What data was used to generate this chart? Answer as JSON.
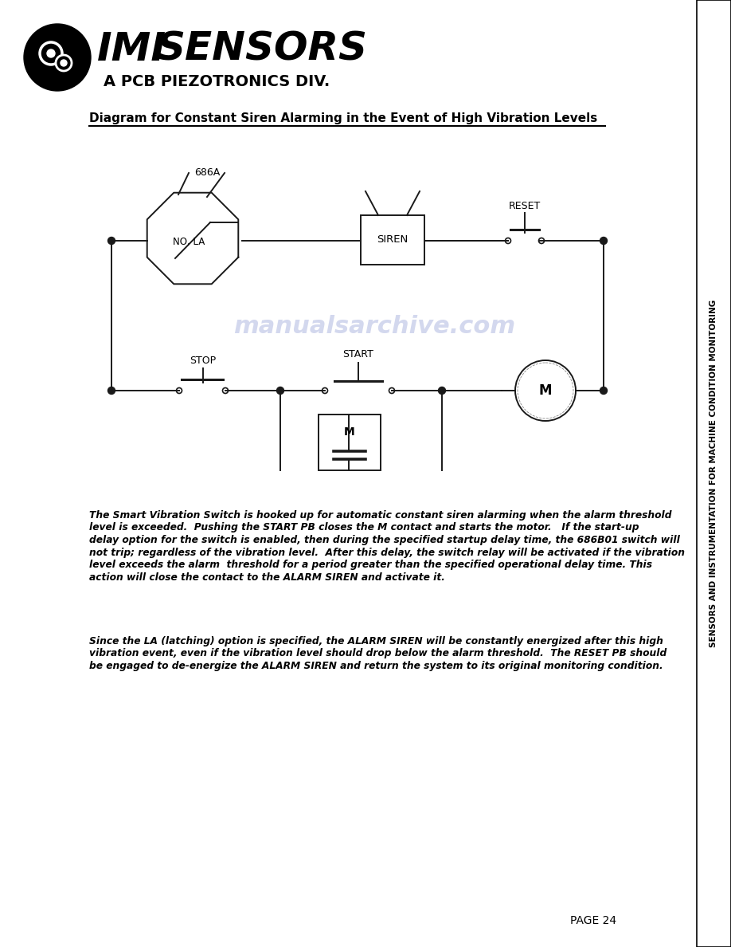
{
  "title": "Diagram for Constant Siren Alarming in the Event of High Vibration Levels",
  "sidebar_text": "SENSORS AND INSTRUMENTATION FOR MACHINE CONDITION MONITORING",
  "para1_line1": "The Smart Vibration Switch is hooked up for automatic constant siren alarming when the alarm threshold",
  "para1_line2": "level is exceeded.  Pushing the START PB closes the M contact and starts the motor.   If the start-up",
  "para1_line3": "delay option for the switch is enabled, then during the specified startup delay time, the 686B01 switch will",
  "para1_line4": "not trip; regardless of the vibration level.  After this delay, the switch relay will be activated if the vibration",
  "para1_line5": "level exceeds the alarm  threshold for a period greater than the specified operational delay time. This",
  "para1_line6": "action will close the contact to the ALARM SIREN and activate it.",
  "para2_line1": "Since the LA (latching) option is specified, the ALARM SIREN will be constantly energized after this high",
  "para2_line2": "vibration event, even if the vibration level should drop below the alarm threshold.  The RESET PB should",
  "para2_line3": "be engaged to de-energize the ALARM SIREN and return the system to its original monitoring condition.",
  "page_num": "PAGE 24",
  "bg_color": "#ffffff",
  "line_color": "#1a1a1a",
  "watermark_text": "manualsarchive.com",
  "watermark_color": "#b0b8e0"
}
